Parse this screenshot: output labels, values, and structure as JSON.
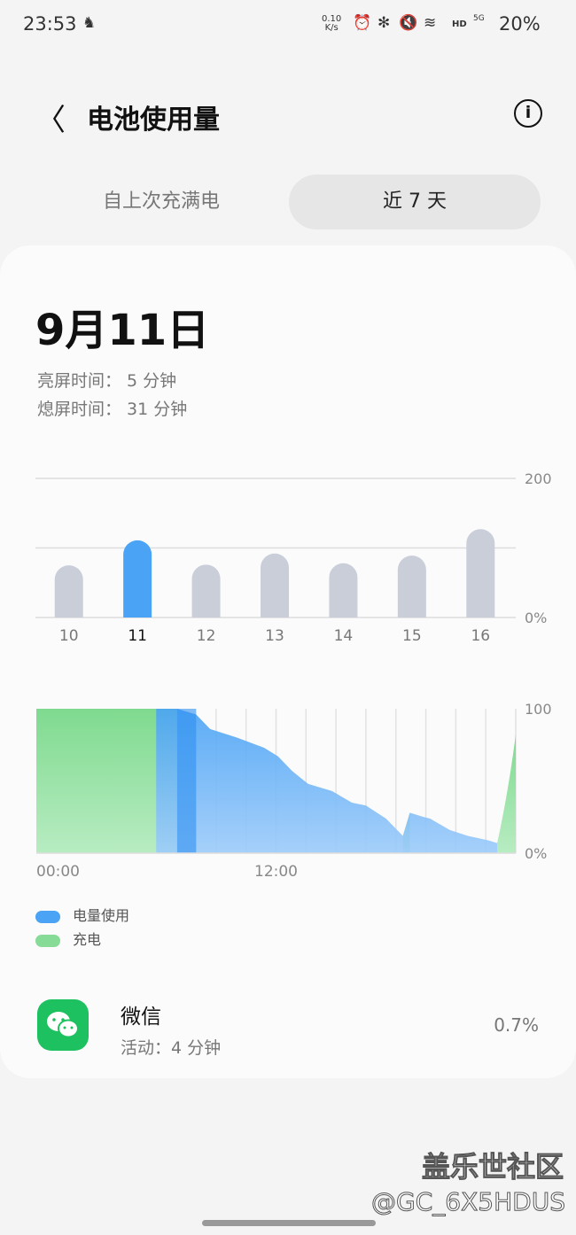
{
  "status_bar": {
    "time": "23:53",
    "net_speed_value": "0.10",
    "net_speed_unit": "K/s",
    "hd": "HD",
    "signal": "5G",
    "battery": "20%"
  },
  "header": {
    "title": "电池使用量"
  },
  "tabs": [
    {
      "label": "自上次充满电",
      "active": false
    },
    {
      "label": "近 7 天",
      "active": true
    }
  ],
  "summary": {
    "date": "9月11日",
    "screen_on": "亮屏时间： 5 分钟",
    "screen_off": "熄屏时间： 31 分钟"
  },
  "colors": {
    "usage": "#4aa3f5",
    "charge": "#86dc97",
    "bar": "#c9ced9",
    "bar_selected": "#4aa3f5"
  },
  "chart_data": [
    {
      "type": "bar",
      "categories": [
        "10",
        "11",
        "12",
        "13",
        "14",
        "15",
        "16"
      ],
      "values": [
        75,
        111,
        76,
        92,
        78,
        89,
        127
      ],
      "selected": "11",
      "y_tick_labels": [
        "200",
        "0%"
      ],
      "ylim": [
        0,
        200
      ],
      "grid": true
    },
    {
      "type": "area",
      "x_tick_labels": [
        "00:00",
        "12:00"
      ],
      "y_tick_labels": [
        "100",
        "0%"
      ],
      "xlim": [
        0,
        24
      ],
      "ylim": [
        0,
        100
      ],
      "grid": true,
      "series": [
        {
          "name": "电量使用",
          "x": [
            6.0,
            7.05,
            8.0,
            8.7,
            10.05,
            11.4,
            12.1,
            12.8,
            13.6,
            14.8,
            15.8,
            16.5,
            17.5,
            18.35,
            18.7,
            19.4,
            19.7,
            20.7,
            21.6,
            22.6,
            23.07
          ],
          "y": [
            100,
            100,
            96,
            86,
            80,
            73,
            67,
            57,
            48,
            43,
            35,
            33,
            24,
            12,
            28,
            25,
            24,
            16,
            12,
            9,
            7
          ]
        },
        {
          "name": "充电",
          "x": [
            0,
            7.05,
            18.35,
            18.7,
            23.07,
            24
          ],
          "y": [
            100,
            100,
            12,
            28,
            7,
            82
          ]
        }
      ]
    }
  ],
  "legend": [
    {
      "label": "电量使用"
    },
    {
      "label": "充电"
    }
  ],
  "apps": [
    {
      "name": "微信",
      "activity": "活动：4 分钟",
      "percent": "0.7%"
    }
  ],
  "watermark": {
    "line1": "盖乐世社区",
    "line2": "@GC_6X5HDUS"
  }
}
